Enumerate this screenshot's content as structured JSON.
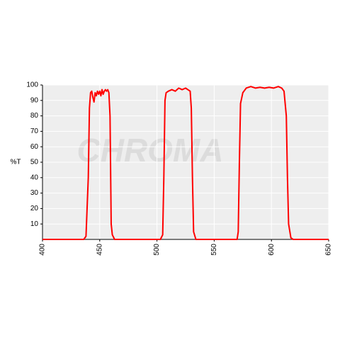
{
  "chart_data": {
    "type": "line",
    "y_label": "%T",
    "watermark": "CHROMA",
    "x": [
      400,
      436,
      438,
      440,
      441,
      442,
      443,
      444,
      445,
      446,
      447,
      448,
      449,
      450,
      451,
      452,
      453,
      454,
      455,
      456,
      457,
      458,
      459,
      460,
      461,
      463,
      503,
      505,
      506,
      507,
      508,
      510,
      513,
      516,
      519,
      522,
      525,
      527,
      529,
      530,
      531,
      532,
      534,
      570,
      571,
      572,
      573,
      575,
      578,
      582,
      586,
      590,
      594,
      598,
      602,
      606,
      609,
      611,
      613,
      614,
      615,
      617,
      619,
      650
    ],
    "series": [
      {
        "color": "#ff0000",
        "values": [
          0,
          0,
          2,
          40,
          85,
          95,
          96,
          92,
          89,
          95,
          93,
          96,
          94,
          96,
          93,
          97,
          94,
          96,
          97,
          96,
          97,
          95,
          80,
          10,
          3,
          0,
          0,
          3,
          40,
          90,
          95,
          96,
          97,
          96,
          98,
          97,
          98,
          97,
          96,
          85,
          40,
          5,
          0,
          0,
          5,
          50,
          88,
          95,
          98,
          99,
          98,
          98.5,
          98,
          98.5,
          98,
          99,
          98,
          96,
          80,
          40,
          10,
          1,
          0,
          0
        ]
      }
    ],
    "xlim": [
      400,
      650
    ],
    "xticks": [
      400,
      450,
      500,
      550,
      600,
      650
    ],
    "ylim": [
      0,
      100
    ],
    "yticks": [
      10,
      20,
      30,
      40,
      50,
      60,
      70,
      80,
      90,
      100
    ],
    "grid": true
  }
}
